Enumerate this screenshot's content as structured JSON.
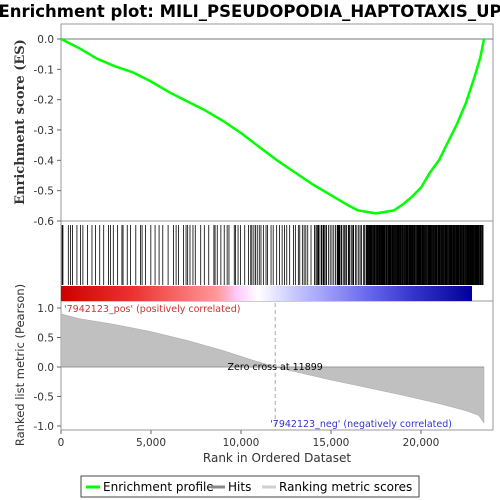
{
  "title": "Enrichment plot: MILI_PSEUDOPODIA_HAPTOTAXIS_UP",
  "legend": {
    "enrichment": "Enrichment profile",
    "hits": "Hits",
    "ranking": "Ranking metric scores"
  },
  "colors": {
    "enrichment_line": "#00ff00",
    "hits": "#000000",
    "ranking_fill": "#c0c0c0",
    "pos_label": "#cc3333",
    "neg_label": "#3333cc"
  },
  "chart_data": [
    {
      "type": "line",
      "panel": "enrichment",
      "ylabel": "Enrichment score (ES)",
      "ylim": [
        -0.6,
        0.02
      ],
      "xlim": [
        0,
        24000
      ],
      "yticks": [
        0.0,
        -0.1,
        -0.2,
        -0.3,
        -0.4,
        -0.5,
        -0.6
      ],
      "ytick_labels": [
        "0.0",
        "-0.1",
        "-0.2",
        "-0.3",
        "-0.4",
        "-0.5",
        "-0.6"
      ],
      "series": [
        {
          "x": [
            0,
            500,
            1000,
            2000,
            3000,
            4000,
            5000,
            6000,
            7000,
            8000,
            9000,
            10000,
            11000,
            12000,
            13000,
            14000,
            15000,
            16000,
            16500,
            17000,
            17500,
            18000,
            18500,
            19000,
            19500,
            20000,
            20500,
            21000,
            21500,
            22000,
            22500,
            23000,
            23300,
            23500
          ],
          "y": [
            0.0,
            -0.015,
            -0.03,
            -0.065,
            -0.09,
            -0.11,
            -0.14,
            -0.175,
            -0.205,
            -0.235,
            -0.27,
            -0.31,
            -0.355,
            -0.4,
            -0.44,
            -0.48,
            -0.515,
            -0.55,
            -0.565,
            -0.57,
            -0.575,
            -0.57,
            -0.565,
            -0.545,
            -0.52,
            -0.49,
            -0.44,
            -0.4,
            -0.34,
            -0.28,
            -0.21,
            -0.12,
            -0.06,
            0.0
          ]
        }
      ]
    },
    {
      "type": "area",
      "panel": "ranking",
      "ylabel": "Ranked list metric (Pearson)",
      "xlabel": "Rank in Ordered Dataset",
      "ylim": [
        -1.05,
        1.05
      ],
      "yticks": [
        1.0,
        0.5,
        0.0,
        -0.5,
        -1.0
      ],
      "ytick_labels": [
        "1.0",
        "0.5",
        "0.0",
        "-0.5",
        "-1.0"
      ],
      "xticks": [
        0,
        5000,
        10000,
        15000,
        20000
      ],
      "xtick_labels": [
        "0",
        "5,000",
        "10,000",
        "15,000",
        "20,000"
      ],
      "series": [
        {
          "x": [
            0,
            1000,
            3000,
            5000,
            7000,
            9000,
            10500,
            11899,
            13000,
            15000,
            17000,
            19000,
            21000,
            22500,
            23200,
            23500
          ],
          "y": [
            0.9,
            0.82,
            0.72,
            0.6,
            0.45,
            0.28,
            0.13,
            0.0,
            -0.08,
            -0.22,
            -0.35,
            -0.48,
            -0.62,
            -0.74,
            -0.82,
            -0.95
          ]
        }
      ],
      "annotations": {
        "zero_cross": "Zero cross at 11899",
        "zero_cross_x": 11899,
        "pos_label": "'7942123_pos' (positively correlated)",
        "neg_label": "'7942123_neg' (negatively correlated)"
      }
    }
  ]
}
